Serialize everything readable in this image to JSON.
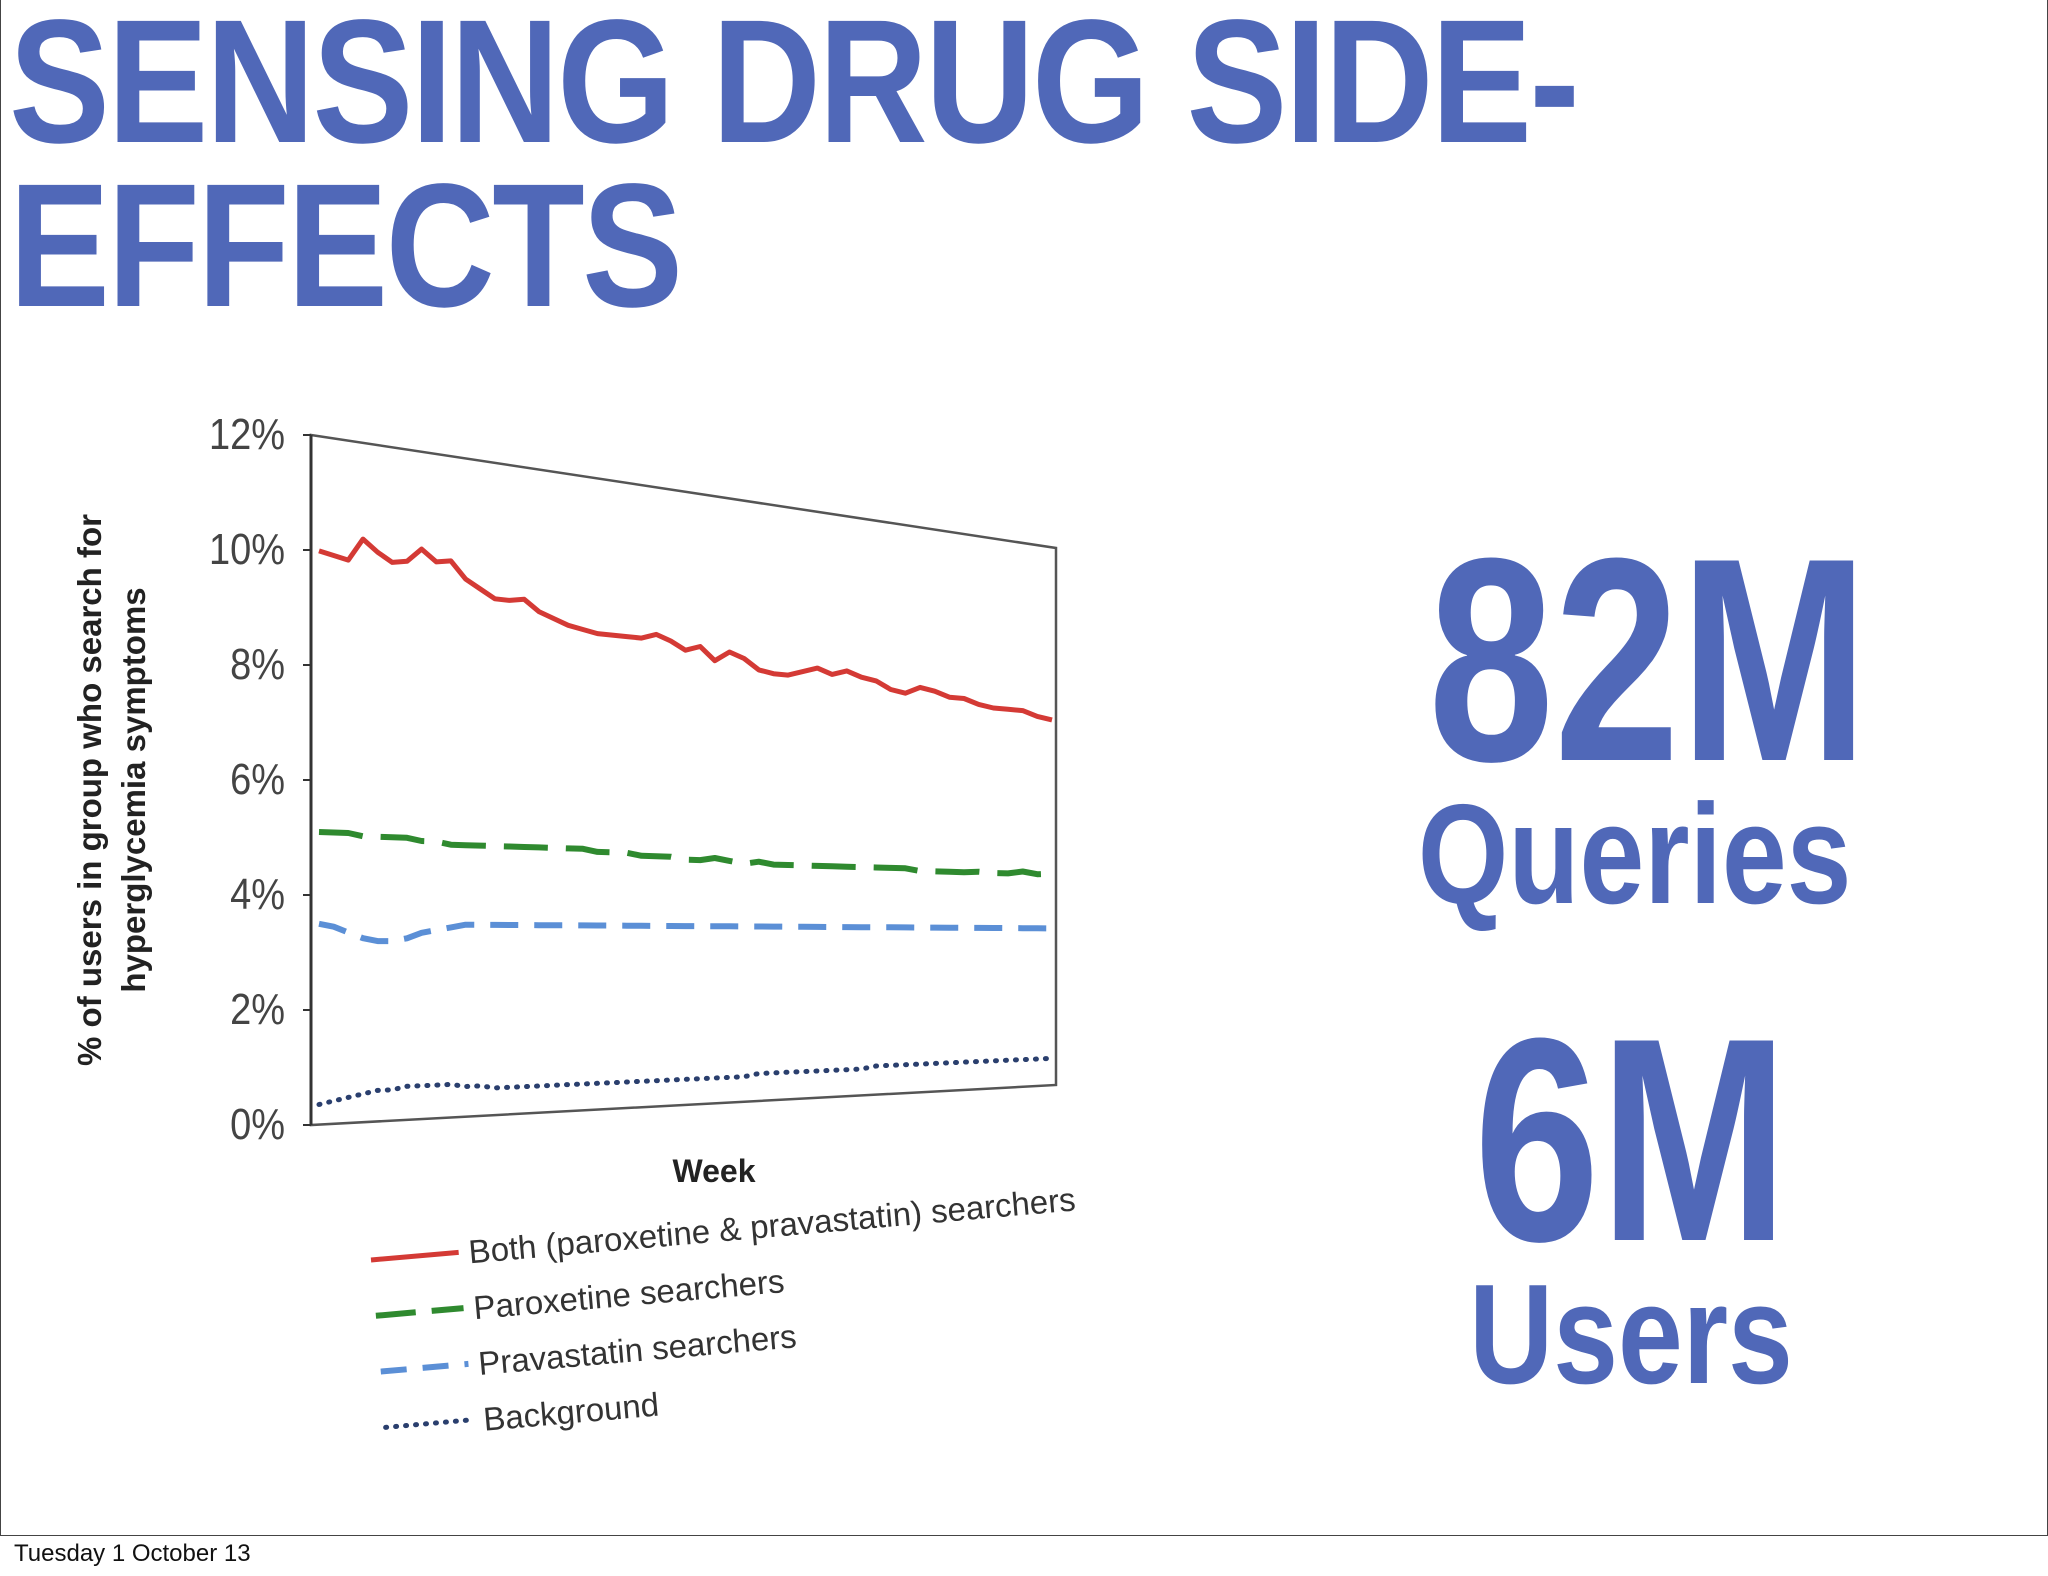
{
  "slide": {
    "title": "SENSING DRUG SIDE-\nEFFECTS",
    "stats": [
      {
        "value": "82M",
        "label": "Queries"
      },
      {
        "value": "6M",
        "label": "Users"
      }
    ],
    "footer": "Tuesday 1 October 13"
  },
  "colors": {
    "title": "#5068b8",
    "both": "#d43a35",
    "paroxetine": "#2f8a2f",
    "pravastatin": "#5b8fd6",
    "background": "#2a3f6e"
  },
  "chart_data": {
    "type": "line",
    "xlabel": "Week",
    "ylabel": "% of users in group who search for hyperglycemia symptoms",
    "ylim": [
      0,
      12
    ],
    "yticks": [
      "0%",
      "2%",
      "4%",
      "6%",
      "8%",
      "10%",
      "12%"
    ],
    "grid": false,
    "legend_position": "bottom-left",
    "series": [
      {
        "name": "Both (paroxetine & pravastatin) searchers",
        "style": "solid",
        "values": [
          10.0,
          9.95,
          9.9,
          10.3,
          10.1,
          9.95,
          10.0,
          10.25,
          10.05,
          10.1,
          9.8,
          9.65,
          9.5,
          9.5,
          9.55,
          9.35,
          9.25,
          9.15,
          9.1,
          9.05,
          9.05,
          9.05,
          9.05,
          9.15,
          9.05,
          8.9,
          9.0,
          8.75,
          8.95,
          8.85,
          8.65,
          8.6,
          8.6,
          8.7,
          8.8,
          8.7,
          8.8,
          8.7,
          8.65,
          8.5,
          8.45,
          8.6,
          8.55,
          8.45,
          8.45,
          8.35,
          8.3,
          8.3,
          8.3,
          8.2,
          8.15
        ]
      },
      {
        "name": "Paroxetine searchers",
        "style": "dashed",
        "values": [
          5.1,
          5.1,
          5.1,
          5.05,
          5.05,
          5.05,
          5.05,
          5.0,
          5.0,
          4.95,
          4.95,
          4.95,
          4.95,
          4.95,
          4.95,
          4.95,
          4.95,
          4.95,
          4.95,
          4.9,
          4.9,
          4.9,
          4.85,
          4.85,
          4.85,
          4.8,
          4.8,
          4.85,
          4.8,
          4.75,
          4.8,
          4.75,
          4.75,
          4.75,
          4.75,
          4.75,
          4.75,
          4.75,
          4.75,
          4.75,
          4.75,
          4.7,
          4.7,
          4.7,
          4.7,
          4.72,
          4.7,
          4.7,
          4.75,
          4.7,
          4.72
        ]
      },
      {
        "name": "Pravastatin searchers",
        "style": "dashed",
        "values": [
          3.5,
          3.45,
          3.35,
          3.25,
          3.2,
          3.2,
          3.25,
          3.35,
          3.4,
          3.45,
          3.5,
          3.5,
          3.5,
          3.5,
          3.5,
          3.5,
          3.5,
          3.5,
          3.5,
          3.5,
          3.5,
          3.5,
          3.5,
          3.5,
          3.5,
          3.5,
          3.5,
          3.5,
          3.5,
          3.5,
          3.5,
          3.5,
          3.5,
          3.5,
          3.5,
          3.5,
          3.5,
          3.5,
          3.5,
          3.5,
          3.5,
          3.5,
          3.5,
          3.5,
          3.5,
          3.5,
          3.5,
          3.5,
          3.5,
          3.5,
          3.5
        ]
      },
      {
        "name": "Background",
        "style": "dotted",
        "values": [
          0.35,
          0.4,
          0.45,
          0.5,
          0.55,
          0.55,
          0.6,
          0.6,
          0.6,
          0.6,
          0.55,
          0.55,
          0.5,
          0.5,
          0.5,
          0.5,
          0.5,
          0.5,
          0.5,
          0.5,
          0.5,
          0.5,
          0.5,
          0.5,
          0.5,
          0.5,
          0.5,
          0.5,
          0.5,
          0.5,
          0.55,
          0.55,
          0.55,
          0.55,
          0.55,
          0.55,
          0.55,
          0.55,
          0.6,
          0.6,
          0.6,
          0.6,
          0.6,
          0.6,
          0.6,
          0.6,
          0.6,
          0.6,
          0.6,
          0.6,
          0.6
        ]
      }
    ]
  }
}
